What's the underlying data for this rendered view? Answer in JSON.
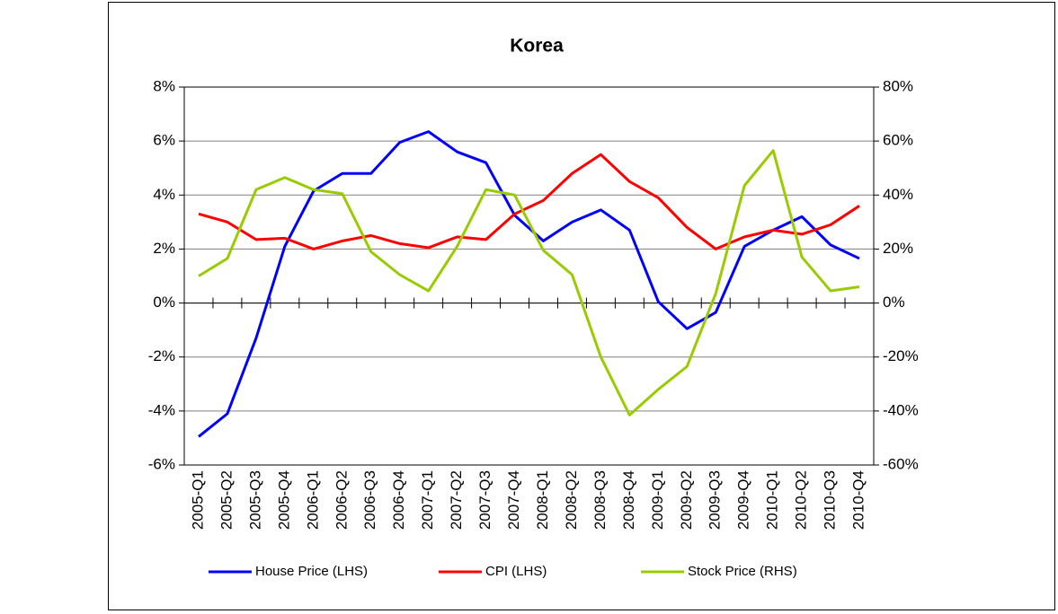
{
  "chart_data": {
    "type": "line",
    "title": "Korea",
    "categories": [
      "2005-Q1",
      "2005-Q2",
      "2005-Q3",
      "2005-Q4",
      "2006-Q1",
      "2006-Q2",
      "2006-Q3",
      "2006-Q4",
      "2007-Q1",
      "2007-Q2",
      "2007-Q3",
      "2007-Q4",
      "2008-Q1",
      "2008-Q2",
      "2008-Q3",
      "2008-Q4",
      "2009-Q1",
      "2009-Q2",
      "2009-Q3",
      "2009-Q4",
      "2010-Q1",
      "2010-Q2",
      "2010-Q3",
      "2010-Q4"
    ],
    "series": [
      {
        "name": "House Price (LHS)",
        "color": "#0000ff",
        "values": [
          -4.95,
          -4.1,
          -1.3,
          2.1,
          4.15,
          4.8,
          4.8,
          5.95,
          6.35,
          5.6,
          5.2,
          3.25,
          2.3,
          3.0,
          3.45,
          2.7,
          0.05,
          -0.95,
          -0.35,
          2.1,
          2.7,
          3.2,
          2.15,
          1.65
        ]
      },
      {
        "name": "CPI (LHS)",
        "color": "#ff0000",
        "values": [
          3.3,
          3.0,
          2.35,
          2.4,
          2.0,
          2.3,
          2.5,
          2.2,
          2.05,
          2.45,
          2.35,
          3.3,
          3.8,
          4.8,
          5.5,
          4.5,
          3.9,
          2.8,
          2.0,
          2.45,
          2.7,
          2.55,
          2.9,
          3.6
        ]
      },
      {
        "name": "Stock Price (RHS)",
        "color": "#99cc00",
        "axis": "y2",
        "values": [
          10,
          16.5,
          42,
          46.5,
          42,
          40.5,
          19,
          10.5,
          4.5,
          21,
          42,
          40,
          19.5,
          10.5,
          -20,
          -41.5,
          -32,
          -23.5,
          3.5,
          43.5,
          56.5,
          17,
          4.5,
          6
        ]
      }
    ],
    "ylim": [
      -6,
      8
    ],
    "yticks": [
      {
        "value": -6,
        "label": "-6%"
      },
      {
        "value": -4,
        "label": "-4%"
      },
      {
        "value": -2,
        "label": "-2%"
      },
      {
        "value": 0,
        "label": "0%"
      },
      {
        "value": 2,
        "label": "2%"
      },
      {
        "value": 4,
        "label": "4%"
      },
      {
        "value": 6,
        "label": "6%"
      },
      {
        "value": 8,
        "label": "8%"
      }
    ],
    "y2lim": [
      -60,
      80
    ],
    "y2ticks": [
      {
        "value": -60,
        "label": "-60%"
      },
      {
        "value": -40,
        "label": "-40%"
      },
      {
        "value": -20,
        "label": "-20%"
      },
      {
        "value": 0,
        "label": "0%"
      },
      {
        "value": 20,
        "label": "20%"
      },
      {
        "value": 40,
        "label": "40%"
      },
      {
        "value": 60,
        "label": "60%"
      },
      {
        "value": 80,
        "label": "80%"
      }
    ],
    "grid": true,
    "legend": "bottom"
  }
}
